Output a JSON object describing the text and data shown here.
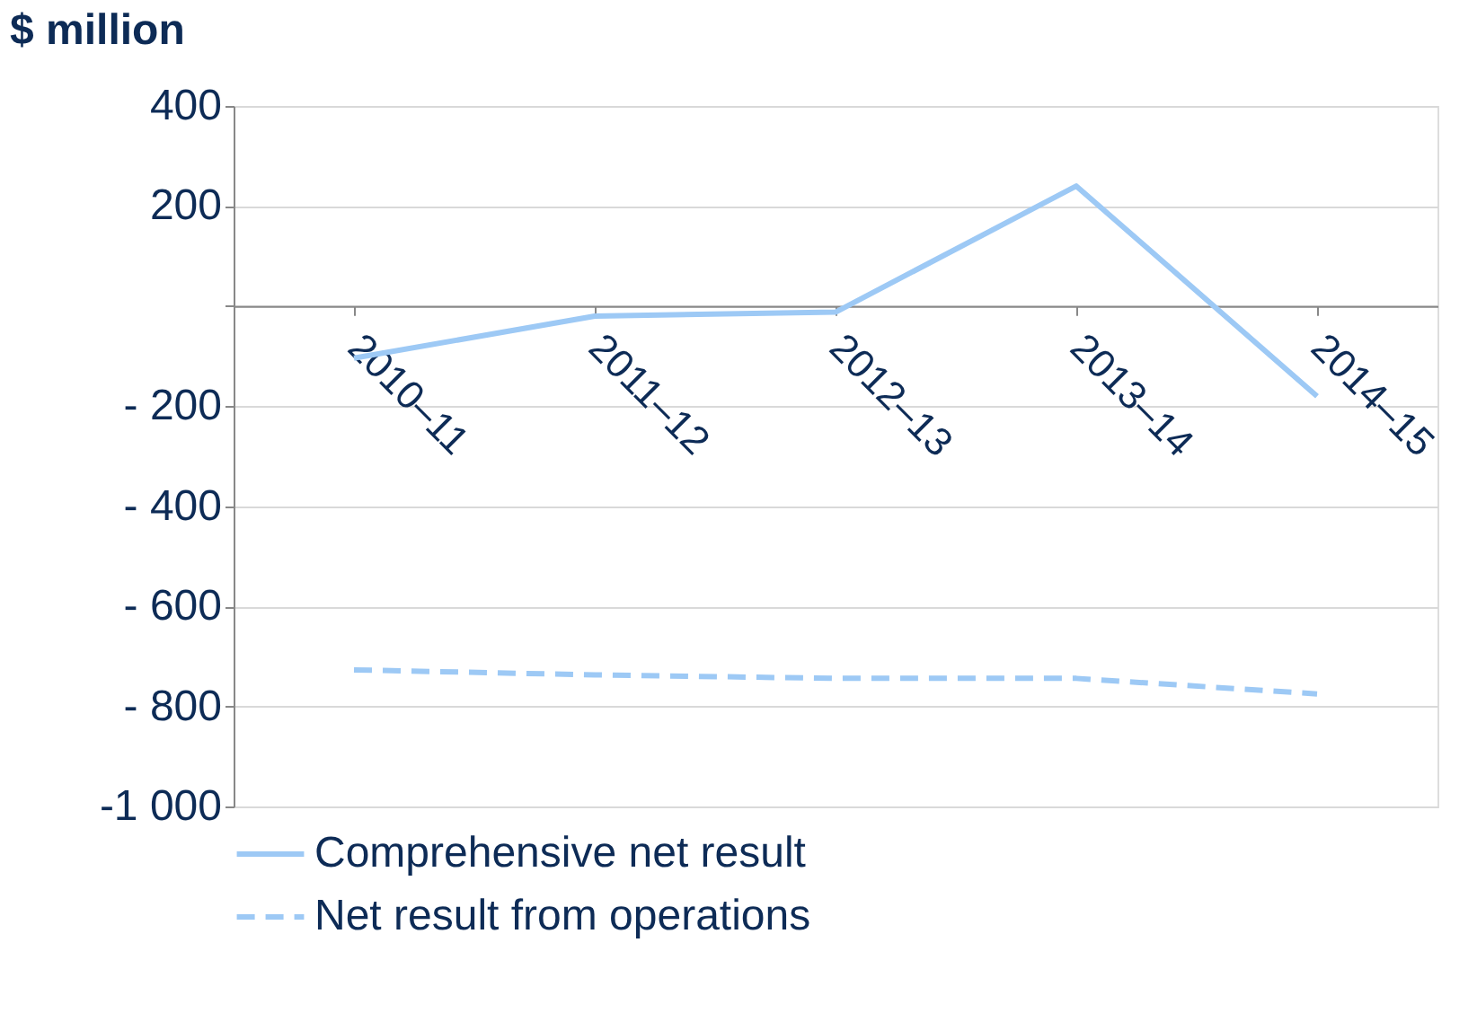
{
  "chart_data": {
    "type": "line",
    "ylabel": "$ million",
    "categories": [
      "2010–11",
      "2011–12",
      "2012–13",
      "2013–14",
      "2014–15"
    ],
    "series": [
      {
        "name": "Comprehensive net result",
        "color": "#9dc9f5",
        "line_style": "solid",
        "values": [
          -104,
          -20,
          -12,
          240,
          -180
        ]
      },
      {
        "name": "Net result from operations",
        "color": "#9dc9f5",
        "line_style": "dashed",
        "values": [
          -727,
          -737,
          -744,
          -744,
          -775
        ]
      }
    ],
    "ylim": [
      -1000,
      400
    ],
    "yticks": [
      {
        "value": -1000,
        "label": "-1 000"
      },
      {
        "value": -800,
        "label": "- 800"
      },
      {
        "value": -600,
        "label": "- 600"
      },
      {
        "value": -400,
        "label": "- 400"
      },
      {
        "value": -200,
        "label": "- 200"
      },
      {
        "value": 0,
        "label": null
      },
      200,
      400
    ],
    "grid": "y",
    "legend": "bottom",
    "marker": "none"
  }
}
